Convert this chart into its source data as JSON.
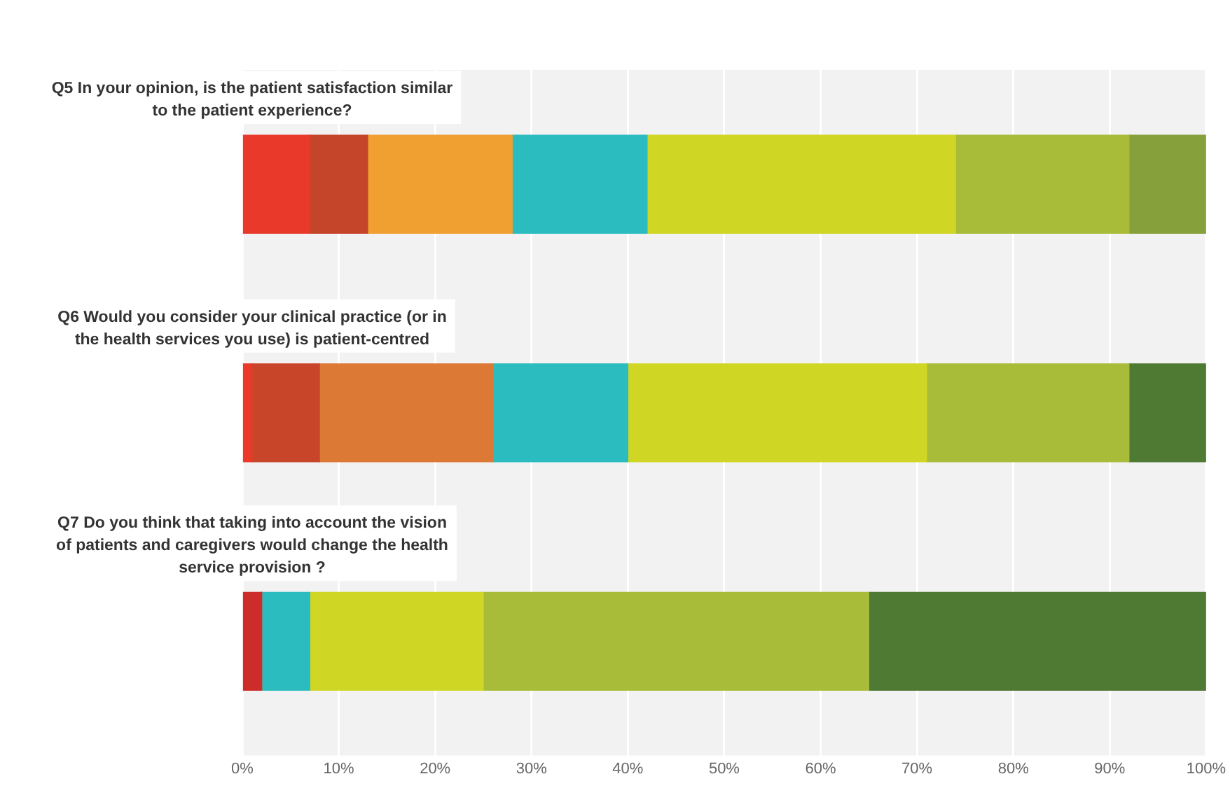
{
  "chart_data": {
    "type": "bar",
    "orientation": "horizontal",
    "stacked": true,
    "grid": "x",
    "categories": [
      "Q5 In your opinion, is the patient satisfaction similar to the patient experience?",
      "Q6 Would you consider your clinical practice (or in the health services you use) is patient-centred",
      "Q7 Do you think that taking into account the vision of patients and caregivers would change the health service provision ?"
    ],
    "series": [
      {
        "colors": [
          "#e8392a",
          "#e8392a",
          "#cc2c2a"
        ],
        "values": [
          7,
          1,
          2
        ]
      },
      {
        "colors": [
          "#c4452a",
          "#c8452a",
          "#c4452a"
        ],
        "values": [
          6,
          7,
          0
        ]
      },
      {
        "colors": [
          "#f0a030",
          "#dc7a35",
          "#dc7a35"
        ],
        "values": [
          15,
          18,
          0
        ]
      },
      {
        "colors": [
          "#2bbcc0",
          "#2bbcc0",
          "#2bbcc0"
        ],
        "values": [
          14,
          14,
          5
        ]
      },
      {
        "colors": [
          "#cfd624",
          "#cfd624",
          "#cfd624"
        ],
        "values": [
          32,
          31,
          18
        ]
      },
      {
        "colors": [
          "#a9bc3a",
          "#a9bc3a",
          "#a9bc3a"
        ],
        "values": [
          18,
          21,
          40
        ]
      },
      {
        "colors": [
          "#86a03c",
          "#4e7a34",
          "#4e7a34"
        ],
        "values": [
          8,
          8,
          35
        ]
      }
    ],
    "xlim": [
      0,
      100
    ],
    "xticks": [
      {
        "value": 0,
        "label": "0%"
      },
      {
        "value": 10,
        "label": "10%"
      },
      {
        "value": 20,
        "label": "20%"
      },
      {
        "value": 30,
        "label": "30%"
      },
      {
        "value": 40,
        "label": "40%"
      },
      {
        "value": 50,
        "label": "50%"
      },
      {
        "value": 60,
        "label": "60%"
      },
      {
        "value": 70,
        "label": "70%"
      },
      {
        "value": 80,
        "label": "80%"
      },
      {
        "value": 90,
        "label": "90%"
      },
      {
        "value": 100,
        "label": "100%"
      }
    ]
  }
}
